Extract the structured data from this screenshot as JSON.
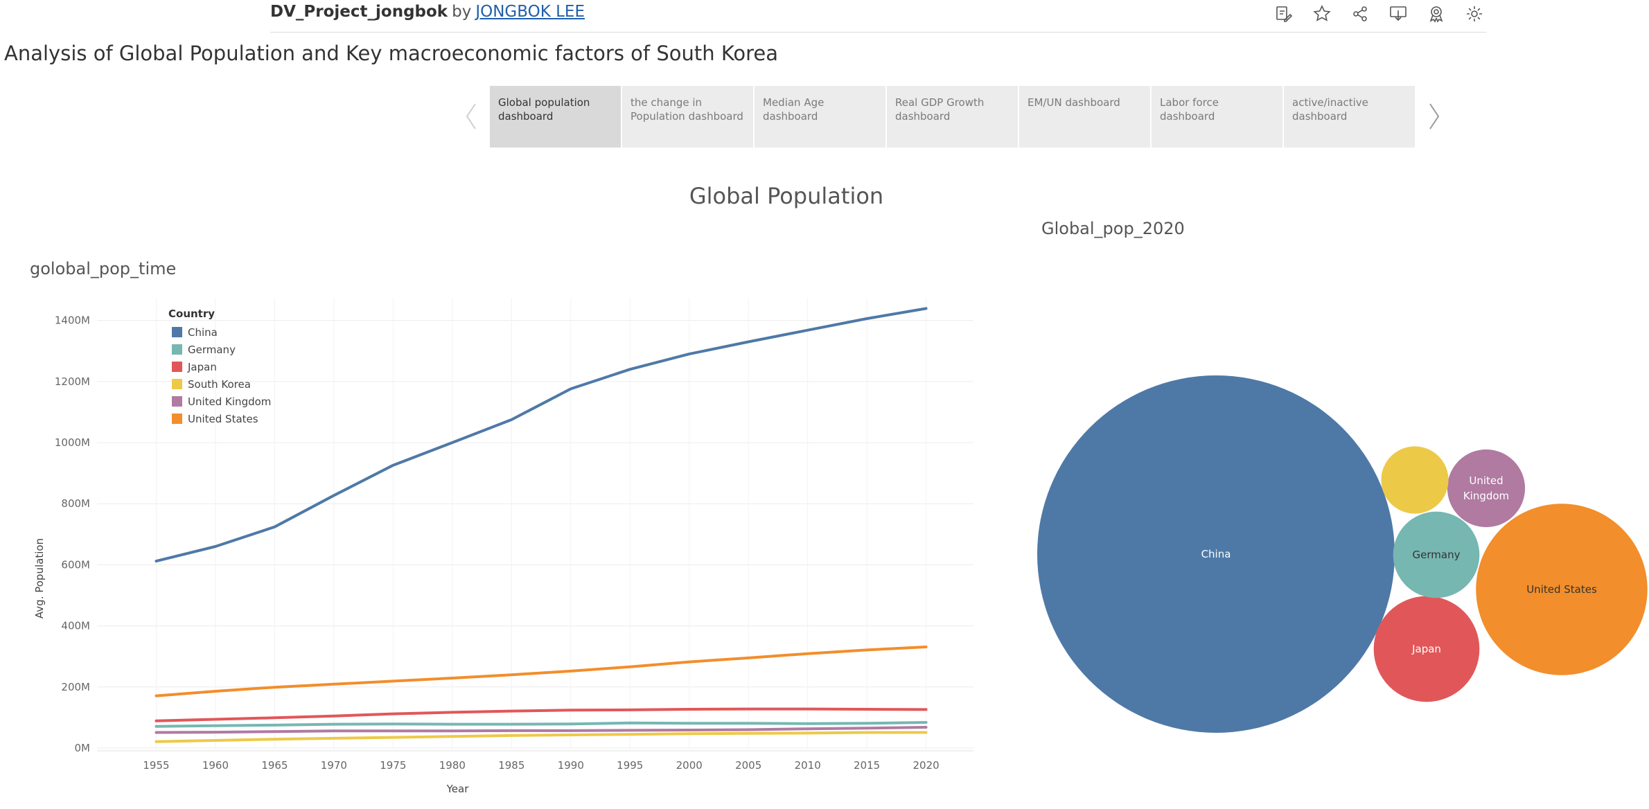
{
  "header": {
    "project_title": "DV_Project_jongbok",
    "by_text": "by",
    "author": "JONGBOK LEE",
    "icons": [
      "edit-icon",
      "star-icon",
      "share-icon",
      "download-icon",
      "badge-icon",
      "settings-icon"
    ]
  },
  "story_title": "Analysis of Global Population and Key macroeconomic factors of South Korea",
  "tabs": [
    {
      "label": "Global population dashboard"
    },
    {
      "label": "the change in Population dashboard"
    },
    {
      "label": "Median Age dashboard"
    },
    {
      "label": "Real GDP Growth dashboard"
    },
    {
      "label": "EM/UN dashboard"
    },
    {
      "label": "Labor force dashboard"
    },
    {
      "label": "active/inactive dashboard"
    }
  ],
  "dashboard": {
    "title": "Global Population"
  },
  "colors": {
    "China": "#4e79a7",
    "Germany": "#76b7b2",
    "Japan": "#e15759",
    "South Korea": "#edc948",
    "United Kingdom": "#b07aa1",
    "United States": "#f28e2b"
  },
  "chart_data": [
    {
      "type": "line",
      "title": "golobal_pop_time",
      "xlabel": "Year",
      "ylabel": "Avg. Population",
      "legend_title": "Country",
      "legend_position": "top-left",
      "ylim": [
        0,
        1400
      ],
      "yticks": [
        0,
        200,
        400,
        600,
        800,
        1000,
        1200,
        1400
      ],
      "ytick_labels": [
        "0M",
        "200M",
        "400M",
        "600M",
        "800M",
        "1000M",
        "1200M",
        "1400M"
      ],
      "x": [
        1955,
        1960,
        1965,
        1970,
        1975,
        1980,
        1985,
        1990,
        1995,
        2000,
        2005,
        2010,
        2015,
        2020
      ],
      "series": [
        {
          "name": "China",
          "values": [
            612,
            660,
            724,
            827,
            926,
            1000,
            1075,
            1176,
            1240,
            1290,
            1330,
            1368,
            1406,
            1439
          ]
        },
        {
          "name": "Germany",
          "values": [
            71,
            73,
            75,
            78,
            79,
            78,
            78,
            79,
            82,
            81,
            81,
            80,
            81,
            84
          ]
        },
        {
          "name": "Japan",
          "values": [
            89,
            94,
            99,
            105,
            112,
            117,
            121,
            124,
            125,
            127,
            128,
            128,
            127,
            126
          ]
        },
        {
          "name": "South Korea",
          "values": [
            21,
            25,
            29,
            32,
            35,
            38,
            41,
            43,
            45,
            47,
            48,
            49,
            51,
            51
          ]
        },
        {
          "name": "United Kingdom",
          "values": [
            51,
            52,
            54,
            56,
            56,
            56,
            57,
            57,
            58,
            59,
            60,
            63,
            65,
            68
          ]
        },
        {
          "name": "United States",
          "values": [
            171,
            186,
            199,
            209,
            219,
            229,
            240,
            252,
            266,
            282,
            295,
            309,
            321,
            331
          ]
        }
      ]
    },
    {
      "type": "bubble",
      "title": "Global_pop_2020",
      "year": 2020,
      "items": [
        {
          "name": "China",
          "value": 1439,
          "label": "China"
        },
        {
          "name": "United States",
          "value": 331,
          "label": "United States"
        },
        {
          "name": "Japan",
          "value": 126,
          "label": "Japan"
        },
        {
          "name": "Germany",
          "value": 84,
          "label": "Germany"
        },
        {
          "name": "United Kingdom",
          "value": 68,
          "label": "United Kingdom"
        },
        {
          "name": "South Korea",
          "value": 51,
          "label": ""
        }
      ]
    }
  ]
}
